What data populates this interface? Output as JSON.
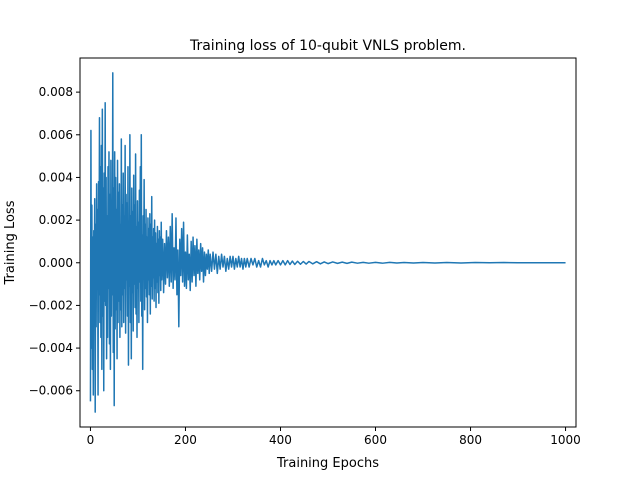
{
  "chart_data": {
    "type": "line",
    "title": "Training loss of 10-qubit VNLS problem.",
    "xlabel": "Training Epochs",
    "ylabel": "Training Loss",
    "xlim": [
      -22,
      1022
    ],
    "ylim": [
      -0.0077,
      0.0096
    ],
    "xticks": [
      0,
      200,
      400,
      600,
      800,
      1000
    ],
    "xtick_labels": [
      "0",
      "200",
      "400",
      "600",
      "800",
      "1000"
    ],
    "yticks": [
      -0.006,
      -0.004,
      -0.002,
      0.0,
      0.002,
      0.004,
      0.006,
      0.008
    ],
    "ytick_labels": [
      "−0.006",
      "−0.004",
      "−0.002",
      "0.000",
      "0.002",
      "0.004",
      "0.006",
      "0.008"
    ],
    "grid": false,
    "legend": "none",
    "series": [
      {
        "color": "#1f77b4",
        "points": [
          [
            0,
            -0.0065
          ],
          [
            1,
            0.0062
          ],
          [
            2,
            -0.004
          ],
          [
            3,
            0.0027
          ],
          [
            4,
            -0.005
          ],
          [
            5,
            0.0012
          ],
          [
            6,
            -0.0062
          ],
          [
            7,
            0.0015
          ],
          [
            8,
            -0.001
          ],
          [
            9,
            0.003
          ],
          [
            10,
            -0.007
          ],
          [
            11,
            0.0018
          ],
          [
            12,
            -0.003
          ],
          [
            13,
            0.0037
          ],
          [
            14,
            -0.0008
          ],
          [
            15,
            0.0025
          ],
          [
            16,
            -0.0062
          ],
          [
            17,
            0.0038
          ],
          [
            18,
            -0.0015
          ],
          [
            19,
            0.0068
          ],
          [
            20,
            -0.0028
          ],
          [
            21,
            0.0045
          ],
          [
            22,
            -0.0035
          ],
          [
            23,
            0.0055
          ],
          [
            24,
            -0.005
          ],
          [
            25,
            0.0072
          ],
          [
            26,
            -0.0025
          ],
          [
            27,
            0.0035
          ],
          [
            28,
            -0.006
          ],
          [
            29,
            0.0042
          ],
          [
            30,
            -0.0018
          ],
          [
            31,
            0.0075
          ],
          [
            32,
            -0.002
          ],
          [
            33,
            0.004
          ],
          [
            34,
            -0.0045
          ],
          [
            35,
            0.0022
          ],
          [
            36,
            -0.0035
          ],
          [
            37,
            0.0045
          ],
          [
            38,
            -0.0012
          ],
          [
            39,
            0.0052
          ],
          [
            40,
            -0.0038
          ],
          [
            41,
            0.0032
          ],
          [
            42,
            -0.005
          ],
          [
            43,
            0.0048
          ],
          [
            44,
            -0.0025
          ],
          [
            45,
            0.0028
          ],
          [
            46,
            -0.0015
          ],
          [
            47,
            0.0089
          ],
          [
            48,
            -0.0042
          ],
          [
            49,
            0.0035
          ],
          [
            50,
            -0.0067
          ],
          [
            51,
            0.0052
          ],
          [
            52,
            -0.0031
          ],
          [
            53,
            0.004
          ],
          [
            54,
            -0.0022
          ],
          [
            55,
            0.0025
          ],
          [
            56,
            -0.0045
          ],
          [
            57,
            0.0048
          ],
          [
            58,
            -0.0028
          ],
          [
            59,
            0.0033
          ],
          [
            60,
            -0.0018
          ],
          [
            61,
            0.0037
          ],
          [
            62,
            -0.0035
          ],
          [
            63,
            0.0018
          ],
          [
            64,
            -0.0022
          ],
          [
            65,
            0.0058
          ],
          [
            66,
            -0.003
          ],
          [
            67,
            0.0027
          ],
          [
            68,
            -0.0015
          ],
          [
            69,
            0.0042
          ],
          [
            70,
            -0.0028
          ],
          [
            71,
            0.0022
          ],
          [
            72,
            -0.0012
          ],
          [
            73,
            0.0055
          ],
          [
            74,
            -0.0033
          ],
          [
            75,
            0.0032
          ],
          [
            76,
            -0.0008
          ],
          [
            77,
            0.0028
          ],
          [
            78,
            -0.0025
          ],
          [
            79,
            0.0045
          ],
          [
            80,
            -0.0048
          ],
          [
            81,
            0.0018
          ],
          [
            82,
            -0.0011
          ],
          [
            83,
            0.006
          ],
          [
            84,
            -0.0028
          ],
          [
            85,
            0.0022
          ],
          [
            86,
            -0.0045
          ],
          [
            87,
            0.0035
          ],
          [
            88,
            -0.0014
          ],
          [
            89,
            0.0024
          ],
          [
            90,
            -0.0032
          ],
          [
            91,
            0.0041
          ],
          [
            92,
            -0.001
          ],
          [
            93,
            0.0027
          ],
          [
            94,
            -0.0021
          ],
          [
            95,
            0.0051
          ],
          [
            96,
            -0.0024
          ],
          [
            97,
            0.0017
          ],
          [
            98,
            -0.0035
          ],
          [
            99,
            0.0029
          ],
          [
            100,
            -0.0012
          ],
          [
            101,
            0.0019
          ],
          [
            102,
            -0.0028
          ],
          [
            103,
            0.0034
          ],
          [
            104,
            -0.0009
          ],
          [
            105,
            0.0045
          ],
          [
            106,
            -0.0018
          ],
          [
            107,
            0.006
          ],
          [
            108,
            -0.0025
          ],
          [
            109,
            0.0013
          ],
          [
            110,
            -0.005
          ],
          [
            111,
            0.0022
          ],
          [
            112,
            -0.0006
          ],
          [
            113,
            0.0039
          ],
          [
            114,
            -0.0022
          ],
          [
            115,
            0.0018
          ],
          [
            116,
            -0.0012
          ],
          [
            117,
            0.0025
          ],
          [
            118,
            -0.0016
          ],
          [
            119,
            0.0012
          ],
          [
            120,
            -0.0028
          ],
          [
            121,
            0.0021
          ],
          [
            122,
            -0.0008
          ],
          [
            123,
            0.0016
          ],
          [
            124,
            -0.0015
          ],
          [
            125,
            0.0023
          ],
          [
            126,
            -0.0024
          ],
          [
            127,
            0.0018
          ],
          [
            128,
            -0.0011
          ],
          [
            129,
            0.0031
          ],
          [
            130,
            -0.0017
          ],
          [
            131,
            0.0012
          ],
          [
            132,
            -0.0007
          ],
          [
            133,
            0.0016
          ],
          [
            134,
            -0.0018
          ],
          [
            135,
            0.002
          ],
          [
            136,
            -0.0012
          ],
          [
            137,
            0.0014
          ],
          [
            138,
            -0.0021
          ],
          [
            139,
            0.0009
          ],
          [
            140,
            -0.0009
          ],
          [
            141,
            0.0017
          ],
          [
            142,
            -0.0014
          ],
          [
            143,
            0.0011
          ],
          [
            144,
            -0.0019
          ],
          [
            145,
            0.0015
          ],
          [
            146,
            -0.0006
          ],
          [
            147,
            0.0012
          ],
          [
            148,
            -0.0013
          ],
          [
            149,
            0.0019
          ],
          [
            150,
            -0.0008
          ],
          [
            152,
            0.0011
          ],
          [
            154,
            -0.0014
          ],
          [
            156,
            0.0009
          ],
          [
            158,
            -0.001
          ],
          [
            160,
            0.0015
          ],
          [
            162,
            -0.0007
          ],
          [
            164,
            0.0012
          ],
          [
            166,
            -0.0011
          ],
          [
            168,
            0.0017
          ],
          [
            170,
            -0.0009
          ],
          [
            172,
            0.0023
          ],
          [
            174,
            -0.0012
          ],
          [
            176,
            0.0007
          ],
          [
            178,
            -0.0008
          ],
          [
            180,
            0.0021
          ],
          [
            182,
            -0.0015
          ],
          [
            184,
            0.0006
          ],
          [
            186,
            -0.003
          ],
          [
            188,
            0.0011
          ],
          [
            190,
            -0.0006
          ],
          [
            192,
            0.0016
          ],
          [
            194,
            -0.0009
          ],
          [
            196,
            0.0019
          ],
          [
            198,
            -0.0011
          ],
          [
            200,
            0.0005
          ],
          [
            202,
            -0.0012
          ],
          [
            204,
            0.0013
          ],
          [
            206,
            -0.0008
          ],
          [
            208,
            0.0004
          ],
          [
            210,
            -0.0013
          ],
          [
            212,
            0.001
          ],
          [
            214,
            -0.0009
          ],
          [
            216,
            0.0012
          ],
          [
            218,
            -0.0006
          ],
          [
            220,
            0.0008
          ],
          [
            222,
            -0.0011
          ],
          [
            224,
            0.0011
          ],
          [
            226,
            -0.0005
          ],
          [
            228,
            0.0006
          ],
          [
            230,
            -0.0008
          ],
          [
            232,
            0.0009
          ],
          [
            234,
            -0.0004
          ],
          [
            236,
            0.0007
          ],
          [
            238,
            -0.0009
          ],
          [
            240,
            0.0005
          ],
          [
            242,
            -0.0006
          ],
          [
            244,
            0.0004
          ],
          [
            246,
            -0.0003
          ],
          [
            248,
            0.0006
          ],
          [
            250,
            -0.0005
          ],
          [
            252,
            0.0004
          ],
          [
            255,
            -0.0004
          ],
          [
            258,
            0.0005
          ],
          [
            261,
            -0.0003
          ],
          [
            264,
            0.0004
          ],
          [
            267,
            -0.0005
          ],
          [
            270,
            0.0003
          ],
          [
            273,
            -0.0003
          ],
          [
            276,
            0.0004
          ],
          [
            279,
            -0.0002
          ],
          [
            282,
            0.0003
          ],
          [
            285,
            -0.0004
          ],
          [
            288,
            0.0002
          ],
          [
            291,
            -0.0003
          ],
          [
            294,
            0.0003
          ],
          [
            297,
            -0.0002
          ],
          [
            300,
            0.0003
          ],
          [
            303,
            -0.0003
          ],
          [
            306,
            0.0002
          ],
          [
            309,
            -0.0002
          ],
          [
            312,
            0.0003
          ],
          [
            315,
            -0.0002
          ],
          [
            318,
            0.0002
          ],
          [
            321,
            -0.0003
          ],
          [
            324,
            0.0002
          ],
          [
            327,
            -0.0002
          ],
          [
            330,
            0.0002
          ],
          [
            334,
            -0.0002
          ],
          [
            338,
            0.0002
          ],
          [
            342,
            -0.0001
          ],
          [
            346,
            0.0002
          ],
          [
            350,
            -0.0002
          ],
          [
            354,
            0.0001
          ],
          [
            358,
            -0.0002
          ],
          [
            362,
            0.0002
          ],
          [
            366,
            -0.0001
          ],
          [
            370,
            0.0001
          ],
          [
            374,
            -0.0002
          ],
          [
            378,
            0.0001
          ],
          [
            382,
            -0.0001
          ],
          [
            386,
            0.0001
          ],
          [
            390,
            -0.0001
          ],
          [
            395,
            0.0001
          ],
          [
            400,
            -0.0001
          ],
          [
            405,
            0.0001
          ],
          [
            410,
            -0.0001
          ],
          [
            415,
            0.0001
          ],
          [
            420,
            -8e-05
          ],
          [
            425,
            8e-05
          ],
          [
            430,
            -8e-05
          ],
          [
            436,
            7e-05
          ],
          [
            442,
            -7e-05
          ],
          [
            448,
            6e-05
          ],
          [
            454,
            -6e-05
          ],
          [
            460,
            6e-05
          ],
          [
            468,
            -5e-05
          ],
          [
            476,
            5e-05
          ],
          [
            484,
            -5e-05
          ],
          [
            492,
            4e-05
          ],
          [
            500,
            -4e-05
          ],
          [
            510,
            4e-05
          ],
          [
            520,
            -3e-05
          ],
          [
            530,
            3e-05
          ],
          [
            540,
            -3e-05
          ],
          [
            550,
            3e-05
          ],
          [
            562,
            -2e-05
          ],
          [
            574,
            2e-05
          ],
          [
            586,
            -2e-05
          ],
          [
            600,
            2e-05
          ],
          [
            615,
            -2e-05
          ],
          [
            630,
            2e-05
          ],
          [
            645,
            -1e-05
          ],
          [
            660,
            1e-05
          ],
          [
            680,
            -1e-05
          ],
          [
            700,
            1e-05
          ],
          [
            725,
            -1e-05
          ],
          [
            750,
            1e-05
          ],
          [
            780,
            -1e-05
          ],
          [
            810,
            1e-05
          ],
          [
            840,
            0
          ],
          [
            870,
            1e-05
          ],
          [
            900,
            0
          ],
          [
            930,
            0
          ],
          [
            960,
            0
          ],
          [
            1000,
            0
          ]
        ]
      }
    ]
  }
}
